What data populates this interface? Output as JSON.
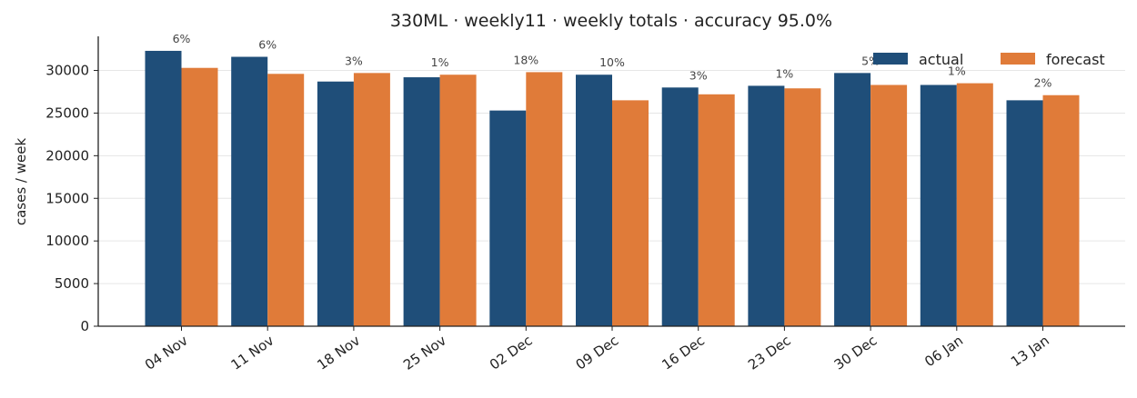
{
  "chart_data": {
    "type": "bar",
    "title": "330ML · weekly11 · weekly totals · accuracy 95.0%",
    "xlabel": "",
    "ylabel": "cases / week",
    "ylim": [
      0,
      34000
    ],
    "yticks": [
      0,
      5000,
      10000,
      15000,
      20000,
      25000,
      30000
    ],
    "grid": "horizontal",
    "legend_position": "top-right",
    "categories": [
      "04 Nov",
      "11 Nov",
      "18 Nov",
      "25 Nov",
      "02 Dec",
      "09 Dec",
      "16 Dec",
      "23 Dec",
      "30 Dec",
      "06 Jan",
      "13 Jan"
    ],
    "series": [
      {
        "name": "actual",
        "color": "#1f4e79",
        "values": [
          32300,
          31600,
          28700,
          29200,
          25300,
          29500,
          28000,
          28200,
          29700,
          28300,
          26500
        ]
      },
      {
        "name": "forecast",
        "color": "#e07b39",
        "values": [
          30300,
          29600,
          29700,
          29500,
          29800,
          26500,
          27200,
          27900,
          28300,
          28500,
          27100
        ]
      }
    ],
    "data_labels": [
      "6%",
      "6%",
      "3%",
      "1%",
      "18%",
      "10%",
      "3%",
      "1%",
      "5%",
      "1%",
      "2%"
    ]
  }
}
